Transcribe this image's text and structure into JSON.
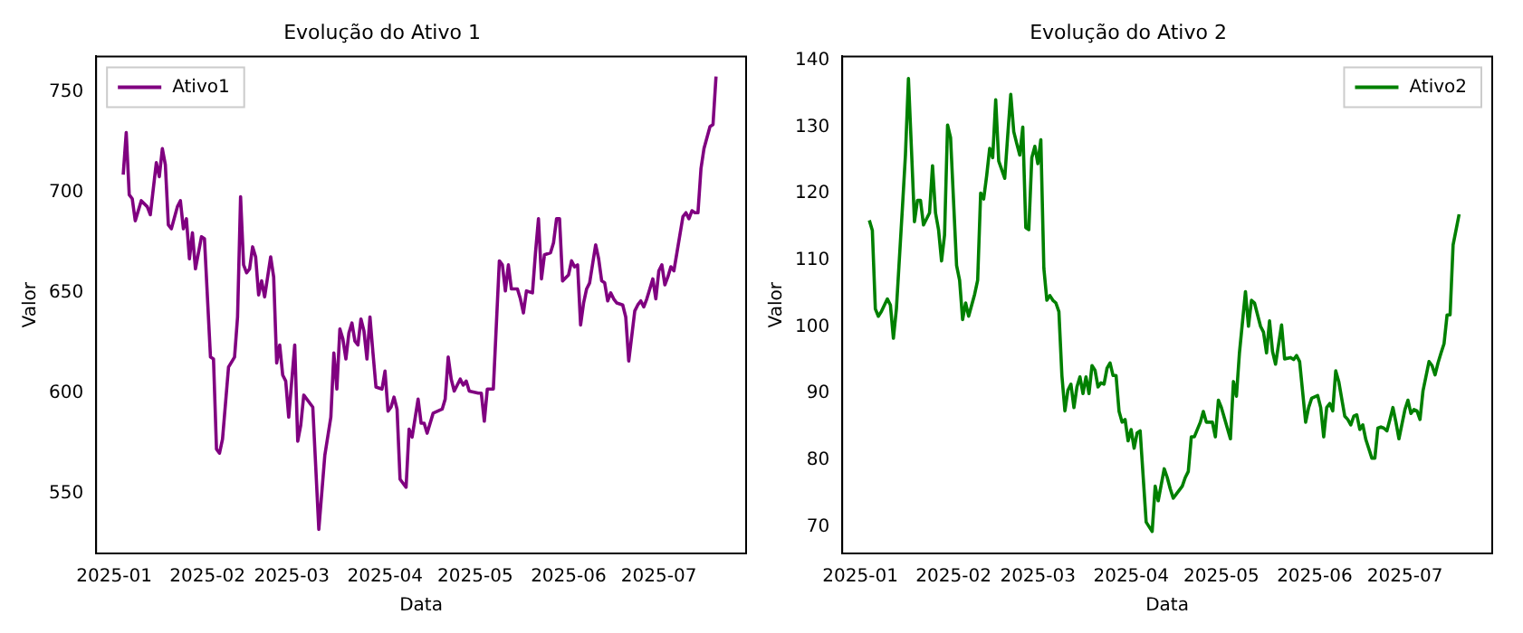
{
  "chart_data": [
    {
      "type": "line",
      "title": "Evolução do Ativo 1",
      "xlabel": "Data",
      "ylabel": "Valor",
      "legend": "top left",
      "x": [
        "2025-01-04",
        "2025-01-05",
        "2025-01-06",
        "2025-01-07",
        "2025-01-08",
        "2025-01-10",
        "2025-01-12",
        "2025-01-13",
        "2025-01-15",
        "2025-01-16",
        "2025-01-17",
        "2025-01-18",
        "2025-01-19",
        "2025-01-20",
        "2025-01-22",
        "2025-01-23",
        "2025-01-24",
        "2025-01-25",
        "2025-01-26",
        "2025-01-27",
        "2025-01-28",
        "2025-01-30",
        "2025-01-31",
        "2025-02-02",
        "2025-02-03",
        "2025-02-04",
        "2025-02-05",
        "2025-02-06",
        "2025-02-08",
        "2025-02-10",
        "2025-02-11",
        "2025-02-12",
        "2025-02-13",
        "2025-02-14",
        "2025-02-15",
        "2025-02-16",
        "2025-02-17",
        "2025-02-18",
        "2025-02-19",
        "2025-02-20",
        "2025-02-22",
        "2025-02-23",
        "2025-02-24",
        "2025-02-25",
        "2025-02-26",
        "2025-02-27",
        "2025-02-28",
        "2025-03-02",
        "2025-03-03",
        "2025-03-04",
        "2025-03-05",
        "2025-03-08",
        "2025-03-10",
        "2025-03-12",
        "2025-03-14",
        "2025-03-15",
        "2025-03-16",
        "2025-03-17",
        "2025-03-18",
        "2025-03-19",
        "2025-03-20",
        "2025-03-21",
        "2025-03-22",
        "2025-03-23",
        "2025-03-24",
        "2025-03-25",
        "2025-03-26",
        "2025-03-27",
        "2025-03-28",
        "2025-03-29",
        "2025-03-31",
        "2025-04-01",
        "2025-04-02",
        "2025-04-03",
        "2025-04-04",
        "2025-04-05",
        "2025-04-06",
        "2025-04-08",
        "2025-04-09",
        "2025-04-10",
        "2025-04-12",
        "2025-04-13",
        "2025-04-14",
        "2025-04-15",
        "2025-04-17",
        "2025-04-20",
        "2025-04-21",
        "2025-04-22",
        "2025-04-23",
        "2025-04-24",
        "2025-04-26",
        "2025-04-27",
        "2025-04-28",
        "2025-04-29",
        "2025-05-02",
        "2025-05-03",
        "2025-05-04",
        "2025-05-05",
        "2025-05-07",
        "2025-05-09",
        "2025-05-10",
        "2025-05-11",
        "2025-05-12",
        "2025-05-13",
        "2025-05-15",
        "2025-05-16",
        "2025-05-17",
        "2025-05-18",
        "2025-05-20",
        "2025-05-21",
        "2025-05-22",
        "2025-05-23",
        "2025-05-24",
        "2025-05-26",
        "2025-05-27",
        "2025-05-28",
        "2025-05-29",
        "2025-05-30",
        "2025-06-01",
        "2025-06-02",
        "2025-06-03",
        "2025-06-04",
        "2025-06-05",
        "2025-06-06",
        "2025-06-07",
        "2025-06-08",
        "2025-06-10",
        "2025-06-11",
        "2025-06-12",
        "2025-06-13",
        "2025-06-14",
        "2025-06-15",
        "2025-06-16",
        "2025-06-17",
        "2025-06-19",
        "2025-06-20",
        "2025-06-21",
        "2025-06-23",
        "2025-06-24",
        "2025-06-25",
        "2025-06-26",
        "2025-06-27",
        "2025-06-28",
        "2025-06-29",
        "2025-06-30",
        "2025-07-01",
        "2025-07-02",
        "2025-07-03",
        "2025-07-04",
        "2025-07-05",
        "2025-07-06",
        "2025-07-07",
        "2025-07-09",
        "2025-07-10",
        "2025-07-11",
        "2025-07-12",
        "2025-07-13",
        "2025-07-14",
        "2025-07-15",
        "2025-07-16",
        "2025-07-18",
        "2025-07-19",
        "2025-07-20"
      ],
      "series": [
        {
          "name": "Ativo1",
          "color": "#800080",
          "values": [
            709,
            730,
            699,
            697,
            686,
            696,
            693,
            689,
            715,
            708,
            722,
            714,
            684,
            682,
            693,
            696,
            682,
            687,
            667,
            680,
            662,
            678,
            677,
            618,
            617,
            572,
            570,
            577,
            613,
            618,
            638,
            698,
            664,
            660,
            662,
            673,
            668,
            649,
            656,
            648,
            668,
            658,
            615,
            624,
            609,
            606,
            588,
            624,
            576,
            584,
            599,
            593,
            532,
            569,
            588,
            620,
            602,
            632,
            627,
            617,
            630,
            635,
            626,
            624,
            637,
            631,
            617,
            638,
            620,
            603,
            602,
            611,
            591,
            593,
            598,
            592,
            557,
            553,
            582,
            578,
            597,
            585,
            585,
            580,
            590,
            592,
            597,
            618,
            607,
            601,
            607,
            604,
            606,
            601,
            600,
            600,
            586,
            602,
            602,
            666,
            664,
            651,
            664,
            652,
            652,
            647,
            640,
            651,
            650,
            670,
            687,
            657,
            669,
            670,
            675,
            687,
            687,
            656,
            659,
            666,
            663,
            664,
            634,
            645,
            652,
            655,
            674,
            667,
            656,
            655,
            646,
            650,
            647,
            645,
            644,
            638,
            616,
            641,
            644,
            646,
            643,
            647,
            652,
            657,
            647,
            661,
            664,
            654,
            658,
            663,
            661,
            670,
            688,
            690,
            687,
            691,
            690,
            690,
            712,
            722,
            733,
            734,
            758
          ]
        }
      ],
      "xlim": [
        "2024-12-26",
        "2025-07-30"
      ],
      "ylim": [
        520,
        768
      ],
      "xticks": [
        {
          "value": "2025-01-01",
          "label": "2025-01"
        },
        {
          "value": "2025-02-01",
          "label": "2025-02"
        },
        {
          "value": "2025-03-01",
          "label": "2025-03"
        },
        {
          "value": "2025-04-01",
          "label": "2025-04"
        },
        {
          "value": "2025-05-01",
          "label": "2025-05"
        },
        {
          "value": "2025-06-01",
          "label": "2025-06"
        },
        {
          "value": "2025-07-01",
          "label": "2025-07"
        }
      ],
      "yticks": [
        550,
        600,
        650,
        700,
        750
      ]
    },
    {
      "type": "line",
      "title": "Evolução do Ativo 2",
      "xlabel": "Data",
      "ylabel": "Valor",
      "legend": "top right",
      "x": [
        "2025-01-04",
        "2025-01-05",
        "2025-01-06",
        "2025-01-07",
        "2025-01-08",
        "2025-01-10",
        "2025-01-11",
        "2025-01-12",
        "2025-01-13",
        "2025-01-15",
        "2025-01-16",
        "2025-01-17",
        "2025-01-18",
        "2025-01-19",
        "2025-01-20",
        "2025-01-21",
        "2025-01-22",
        "2025-01-24",
        "2025-01-25",
        "2025-01-26",
        "2025-01-27",
        "2025-01-28",
        "2025-01-29",
        "2025-01-30",
        "2025-01-31",
        "2025-02-02",
        "2025-02-03",
        "2025-02-04",
        "2025-02-05",
        "2025-02-06",
        "2025-02-08",
        "2025-02-09",
        "2025-02-10",
        "2025-02-11",
        "2025-02-12",
        "2025-02-13",
        "2025-02-14",
        "2025-02-15",
        "2025-02-16",
        "2025-02-18",
        "2025-02-19",
        "2025-02-20",
        "2025-02-21",
        "2025-02-22",
        "2025-02-23",
        "2025-02-24",
        "2025-02-25",
        "2025-02-26",
        "2025-02-27",
        "2025-02-28",
        "2025-03-01",
        "2025-03-02",
        "2025-03-03",
        "2025-03-04",
        "2025-03-05",
        "2025-03-06",
        "2025-03-07",
        "2025-03-08",
        "2025-03-09",
        "2025-03-10",
        "2025-03-11",
        "2025-03-12",
        "2025-03-13",
        "2025-03-14",
        "2025-03-15",
        "2025-03-16",
        "2025-03-17",
        "2025-03-18",
        "2025-03-19",
        "2025-03-20",
        "2025-03-21",
        "2025-03-22",
        "2025-03-23",
        "2025-03-24",
        "2025-03-25",
        "2025-03-26",
        "2025-03-27",
        "2025-03-28",
        "2025-03-29",
        "2025-03-30",
        "2025-03-31",
        "2025-04-01",
        "2025-04-02",
        "2025-04-03",
        "2025-04-04",
        "2025-04-06",
        "2025-04-08",
        "2025-04-09",
        "2025-04-10",
        "2025-04-12",
        "2025-04-13",
        "2025-04-14",
        "2025-04-15",
        "2025-04-18",
        "2025-04-19",
        "2025-04-20",
        "2025-04-21",
        "2025-04-22",
        "2025-04-24",
        "2025-04-25",
        "2025-04-26",
        "2025-04-28",
        "2025-04-29",
        "2025-04-30",
        "2025-05-01",
        "2025-05-04",
        "2025-05-05",
        "2025-05-06",
        "2025-05-07",
        "2025-05-09",
        "2025-05-10",
        "2025-05-11",
        "2025-05-12",
        "2025-05-14",
        "2025-05-15",
        "2025-05-16",
        "2025-05-17",
        "2025-05-18",
        "2025-05-19",
        "2025-05-21",
        "2025-05-22",
        "2025-05-24",
        "2025-05-25",
        "2025-05-26",
        "2025-05-27",
        "2025-05-29",
        "2025-05-30",
        "2025-05-31",
        "2025-06-02",
        "2025-06-03",
        "2025-06-04",
        "2025-06-05",
        "2025-06-06",
        "2025-06-07",
        "2025-06-08",
        "2025-06-09",
        "2025-06-11",
        "2025-06-12",
        "2025-06-13",
        "2025-06-14",
        "2025-06-15",
        "2025-06-16",
        "2025-06-17",
        "2025-06-18",
        "2025-06-20",
        "2025-06-21",
        "2025-06-22",
        "2025-06-23",
        "2025-06-24",
        "2025-06-25",
        "2025-06-26",
        "2025-06-27",
        "2025-06-28",
        "2025-06-29",
        "2025-07-01",
        "2025-07-02",
        "2025-07-03",
        "2025-07-04",
        "2025-07-05",
        "2025-07-06",
        "2025-07-07",
        "2025-07-09",
        "2025-07-10",
        "2025-07-11",
        "2025-07-12",
        "2025-07-13",
        "2025-07-14",
        "2025-07-15",
        "2025-07-16",
        "2025-07-17",
        "2025-07-19"
      ],
      "series": [
        {
          "name": "Ativo2",
          "color": "#008000",
          "values": [
            116,
            114.5,
            102.7,
            101.6,
            102.3,
            104.2,
            103.3,
            98.3,
            102.7,
            117.9,
            125.8,
            137.3,
            126.7,
            115.8,
            119,
            119,
            115.3,
            117.1,
            124.2,
            117.1,
            114.6,
            109.9,
            113.8,
            130.3,
            128.4,
            109.2,
            107,
            101.1,
            103.6,
            101.6,
            104.9,
            107,
            120.1,
            119.2,
            122.7,
            126.8,
            125.4,
            134.1,
            124.9,
            122.3,
            128.8,
            134.9,
            129.3,
            127.5,
            125.8,
            130,
            114.9,
            114.6,
            125.4,
            127.1,
            124.5,
            128.1,
            108.8,
            104,
            104.7,
            104,
            103.6,
            102.3,
            92.7,
            87.4,
            90.5,
            91.4,
            87.9,
            91,
            92.5,
            90,
            92.5,
            90,
            94.2,
            93.5,
            91,
            91.6,
            91.4,
            93.8,
            94.6,
            92.7,
            92.7,
            87.3,
            85.7,
            86.1,
            82.9,
            84.6,
            81.8,
            84.1,
            84.4,
            70.7,
            69.3,
            76.1,
            73.9,
            78.7,
            77.4,
            75.7,
            74.3,
            76.1,
            77.4,
            78.3,
            83.5,
            83.5,
            85.7,
            87.3,
            85.7,
            85.7,
            83.5,
            89,
            87.9,
            83.2,
            91.8,
            89.6,
            96.1,
            105.3,
            100.1,
            104,
            103.6,
            100.1,
            99.2,
            96.1,
            100.9,
            96.3,
            94.4,
            100.3,
            95.2,
            95.4,
            95.1,
            95.7,
            94.8,
            85.7,
            87.9,
            89.3,
            89.7,
            87.9,
            83.5,
            87.9,
            88.5,
            87.4,
            93.4,
            91.8,
            86.6,
            86.1,
            85.3,
            86.6,
            86.8,
            84.6,
            85.3,
            83.1,
            80.3,
            80.3,
            84.8,
            85,
            84.8,
            84.4,
            86.1,
            87.9,
            85.7,
            83.2,
            87.6,
            89,
            87,
            87.6,
            87.4,
            86.1,
            90.4,
            94.8,
            94.2,
            92.8,
            94.6,
            96.1,
            97.5,
            101.8,
            101.8,
            112.3,
            116.9
          ]
        }
      ],
      "xlim": [
        "2024-12-26",
        "2025-07-30"
      ],
      "ylim": [
        66,
        140.6
      ],
      "xticks": [
        {
          "value": "2025-01-01",
          "label": "2025-01"
        },
        {
          "value": "2025-02-01",
          "label": "2025-02"
        },
        {
          "value": "2025-03-01",
          "label": "2025-03"
        },
        {
          "value": "2025-04-01",
          "label": "2025-04"
        },
        {
          "value": "2025-05-01",
          "label": "2025-05"
        },
        {
          "value": "2025-06-01",
          "label": "2025-06"
        },
        {
          "value": "2025-07-01",
          "label": "2025-07"
        }
      ],
      "yticks": [
        70,
        80,
        90,
        100,
        110,
        120,
        130,
        140
      ]
    }
  ]
}
